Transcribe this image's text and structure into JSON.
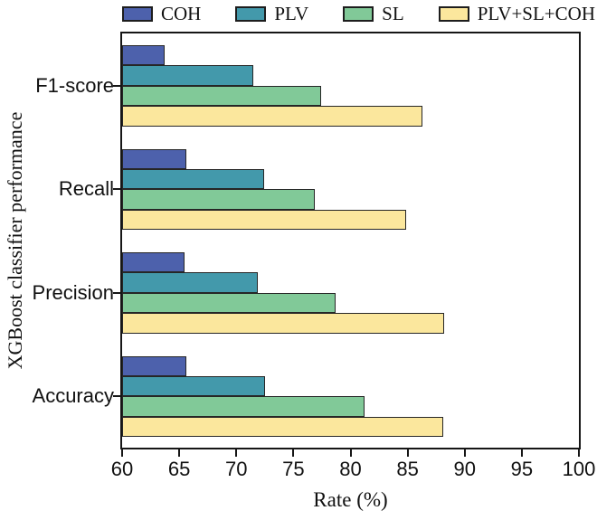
{
  "chart_data": {
    "type": "bar",
    "orientation": "horizontal",
    "title": "",
    "xlabel": "Rate (%)",
    "ylabel": "XGBoost classifier performance",
    "xlim": [
      60,
      100
    ],
    "xticks": [
      60,
      65,
      70,
      75,
      80,
      85,
      90,
      95,
      100
    ],
    "grid": false,
    "legend_position": "top",
    "categories": [
      "F1-score",
      "Recall",
      "Precision",
      "Accuracy"
    ],
    "series": [
      {
        "name": "COH",
        "color": "#4d61ac",
        "values": [
          63.7,
          65.6,
          65.5,
          65.6
        ]
      },
      {
        "name": "PLV",
        "color": "#4399ab",
        "values": [
          71.5,
          72.4,
          71.9,
          72.5
        ]
      },
      {
        "name": "SL",
        "color": "#81c998",
        "values": [
          77.4,
          76.9,
          78.7,
          81.2
        ]
      },
      {
        "name": "PLV+SL+COH",
        "color": "#fbe79d",
        "values": [
          86.3,
          84.9,
          88.2,
          88.1
        ]
      }
    ]
  }
}
